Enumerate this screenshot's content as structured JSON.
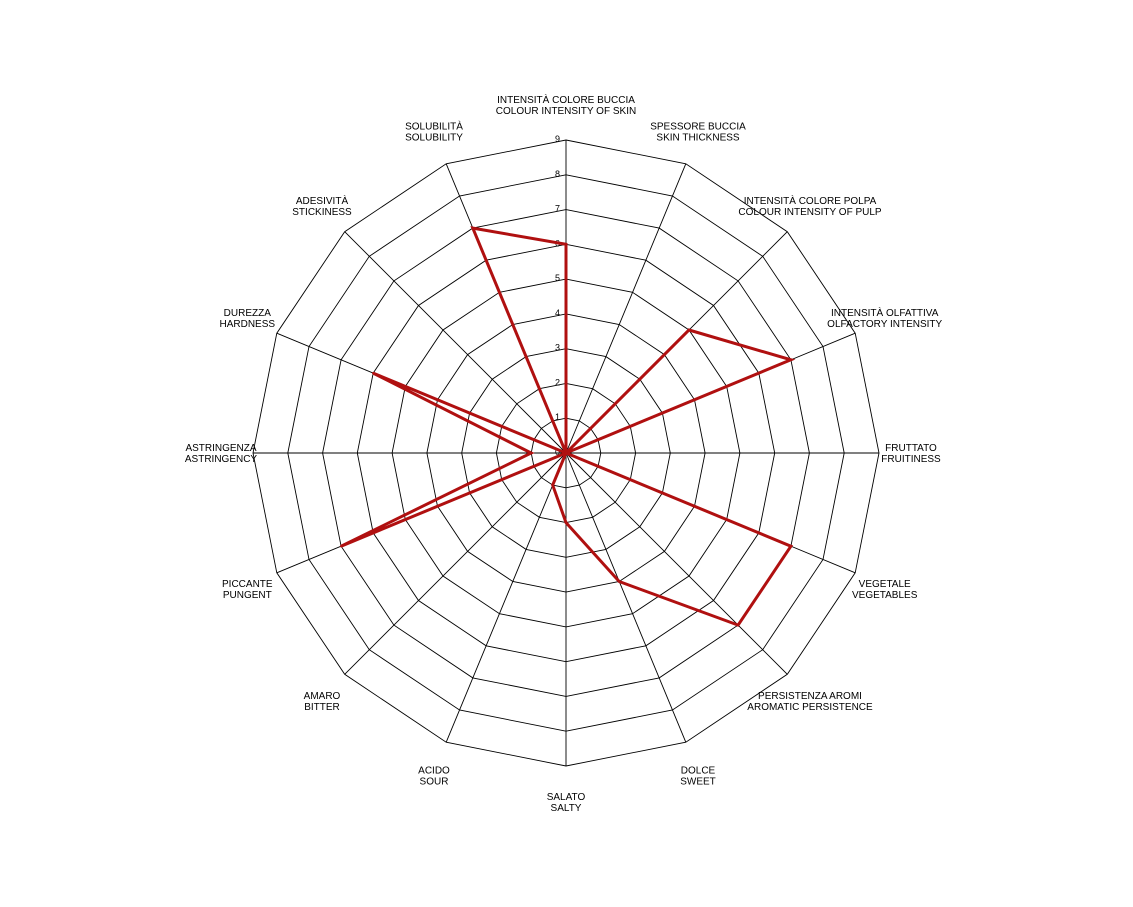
{
  "chart_data": {
    "type": "radar",
    "title": "",
    "grid": true,
    "legend": "none",
    "rlim": [
      0,
      9
    ],
    "ticks": [
      "0",
      "1",
      "2",
      "3",
      "4",
      "5",
      "6",
      "7",
      "8",
      "9"
    ],
    "axes": [
      {
        "line1": "INTENSITÀ COLORE BUCCIA",
        "line2": "COLOUR INTENSITY OF SKIN"
      },
      {
        "line1": "SPESSORE BUCCIA",
        "line2": "SKIN THICKNESS"
      },
      {
        "line1": "INTENSITÀ COLORE POLPA",
        "line2": "COLOUR INTENSITY OF PULP"
      },
      {
        "line1": "INTENSITÀ OLFATTIVA",
        "line2": "OLFACTORY INTENSITY"
      },
      {
        "line1": "FRUTTATO",
        "line2": "FRUITINESS"
      },
      {
        "line1": "VEGETALE",
        "line2": "VEGETABLES"
      },
      {
        "line1": "PERSISTENZA AROMI",
        "line2": "AROMATIC PERSISTENCE"
      },
      {
        "line1": "DOLCE",
        "line2": "SWEET"
      },
      {
        "line1": "SALATO",
        "line2": "SALTY"
      },
      {
        "line1": "ACIDO",
        "line2": "SOUR"
      },
      {
        "line1": "AMARO",
        "line2": "BITTER"
      },
      {
        "line1": "PICCANTE",
        "line2": "PUNGENT"
      },
      {
        "line1": "ASTRINGENZA",
        "line2": "ASTRINGENCY"
      },
      {
        "line1": "DUREZZA",
        "line2": "HARDNESS"
      },
      {
        "line1": "ADESIVITÀ",
        "line2": "STICKINESS"
      },
      {
        "line1": "SOLUBILITÀ",
        "line2": "SOLUBILITY"
      }
    ],
    "series": [
      {
        "values": [
          6,
          0,
          5,
          7,
          0,
          7,
          7,
          4,
          2,
          1,
          0,
          7,
          1,
          6,
          0,
          7
        ],
        "color": "#b01010"
      }
    ],
    "grid_color": "#000000"
  }
}
